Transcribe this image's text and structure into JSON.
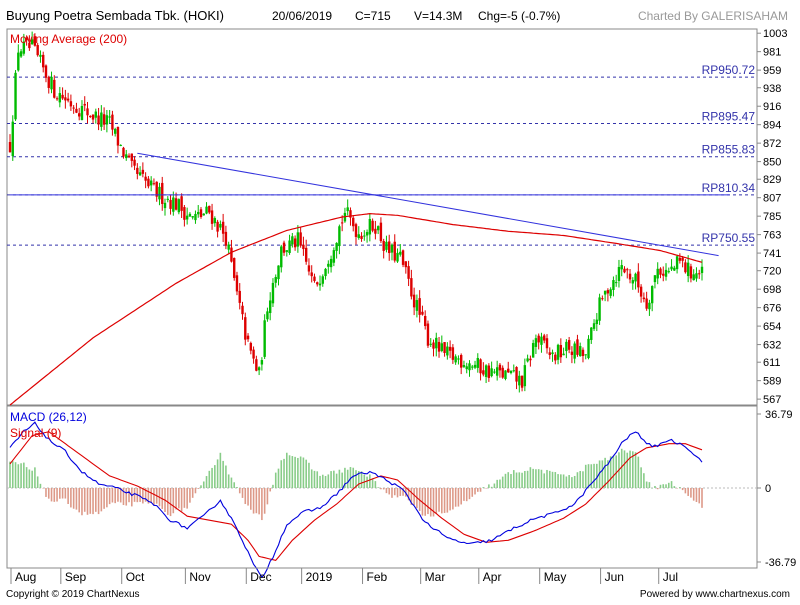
{
  "header": {
    "title": "Buyung Poetra Sembada Tbk. (HOKI)",
    "date": "20/06/2019",
    "close": "C=715",
    "volume": "V=14.3M",
    "change": "Chg=-5 (-0.7%)",
    "credit": "Charted By GALERISAHAM"
  },
  "footer": {
    "copyright": "Copyright © 2019 ChartNexus",
    "powered": "Powered by www.chartnexus.com"
  },
  "colors": {
    "up": "#00bb00",
    "down": "#dd0000",
    "ma": "#dd0000",
    "trend": "#3333dd",
    "macd": "#0000dd",
    "signal": "#dd0000",
    "hist_up": "#88cc88",
    "hist_down": "#dd9988",
    "level": "#3333aa"
  },
  "chart_data": [
    {
      "type": "candlestick",
      "indicator_label": "Moving Average (200)",
      "x_labels": [
        "Aug",
        "Sep",
        "Oct",
        "Nov",
        "Dec",
        "2019",
        "Feb",
        "Mar",
        "Apr",
        "May",
        "Jun",
        "Jul"
      ],
      "y_ticks": [
        1003,
        981,
        959,
        938,
        916,
        894,
        872,
        850,
        829,
        807,
        785,
        763,
        741,
        720,
        698,
        676,
        654,
        632,
        611,
        589,
        567
      ],
      "ylim": [
        560,
        1008
      ],
      "levels": [
        {
          "label": "RP950.72",
          "value": 950.72
        },
        {
          "label": "RP895.47",
          "value": 895.47
        },
        {
          "label": "RP855.83",
          "value": 855.83
        },
        {
          "label": "RP810.34",
          "value": 810.34
        },
        {
          "label": "RP750.55",
          "value": 750.55
        }
      ],
      "price_path": [
        [
          0,
          870
        ],
        [
          3,
          985
        ],
        [
          8,
          985
        ],
        [
          16,
          935
        ],
        [
          22,
          920
        ],
        [
          30,
          905
        ],
        [
          36,
          895
        ],
        [
          44,
          840
        ],
        [
          52,
          815
        ],
        [
          60,
          800
        ],
        [
          66,
          782
        ],
        [
          72,
          790
        ],
        [
          78,
          760
        ],
        [
          82,
          690
        ],
        [
          86,
          630
        ],
        [
          90,
          595
        ],
        [
          93,
          680
        ],
        [
          98,
          745
        ],
        [
          104,
          755
        ],
        [
          110,
          700
        ],
        [
          116,
          745
        ],
        [
          121,
          790
        ],
        [
          126,
          765
        ],
        [
          132,
          775
        ],
        [
          136,
          745
        ],
        [
          141,
          735
        ],
        [
          146,
          685
        ],
        [
          151,
          640
        ],
        [
          157,
          620
        ],
        [
          165,
          612
        ],
        [
          173,
          600
        ],
        [
          180,
          595
        ],
        [
          185,
          588
        ],
        [
          190,
          640
        ],
        [
          196,
          618
        ],
        [
          202,
          628
        ],
        [
          208,
          618
        ],
        [
          212,
          670
        ],
        [
          216,
          700
        ],
        [
          221,
          725
        ],
        [
          226,
          708
        ],
        [
          230,
          682
        ],
        [
          234,
          722
        ],
        [
          238,
          718
        ],
        [
          242,
          730
        ],
        [
          245,
          720
        ],
        [
          250,
          715
        ]
      ],
      "moving_average_200": [
        [
          0,
          560
        ],
        [
          30,
          640
        ],
        [
          60,
          705
        ],
        [
          80,
          742
        ],
        [
          100,
          768
        ],
        [
          120,
          784
        ],
        [
          130,
          788
        ],
        [
          140,
          786
        ],
        [
          160,
          775
        ],
        [
          180,
          767
        ],
        [
          200,
          762
        ],
        [
          220,
          752
        ],
        [
          235,
          744
        ],
        [
          250,
          730
        ]
      ],
      "trend_lines": [
        {
          "from": [
            46,
            860
          ],
          "to": [
            256,
            738
          ]
        },
        {
          "from": [
            0,
            810.34
          ],
          "to": [
            260,
            810.34
          ]
        }
      ]
    },
    {
      "type": "macd",
      "macd_label": "MACD (26,12)",
      "signal_label": "Signal (9)",
      "y_ticks": [
        "36.79",
        "0",
        "-36.79"
      ],
      "ylim": [
        -50,
        50
      ],
      "macd": [
        [
          0,
          20
        ],
        [
          5,
          28
        ],
        [
          9,
          32
        ],
        [
          14,
          24
        ],
        [
          20,
          18
        ],
        [
          26,
          8
        ],
        [
          32,
          2
        ],
        [
          38,
          0
        ],
        [
          46,
          -4
        ],
        [
          52,
          -8
        ],
        [
          58,
          -16
        ],
        [
          64,
          -20
        ],
        [
          70,
          -14
        ],
        [
          76,
          -6
        ],
        [
          82,
          -20
        ],
        [
          88,
          -38
        ],
        [
          91,
          -45
        ],
        [
          95,
          -34
        ],
        [
          100,
          -18
        ],
        [
          106,
          -12
        ],
        [
          112,
          -10
        ],
        [
          118,
          -3
        ],
        [
          124,
          6
        ],
        [
          130,
          8
        ],
        [
          136,
          4
        ],
        [
          142,
          -1
        ],
        [
          150,
          -17
        ],
        [
          158,
          -25
        ],
        [
          166,
          -28
        ],
        [
          174,
          -26
        ],
        [
          182,
          -20
        ],
        [
          190,
          -15
        ],
        [
          196,
          -13
        ],
        [
          204,
          -8
        ],
        [
          210,
          2
        ],
        [
          216,
          12
        ],
        [
          222,
          24
        ],
        [
          226,
          28
        ],
        [
          232,
          20
        ],
        [
          238,
          24
        ],
        [
          244,
          21
        ],
        [
          250,
          13
        ]
      ],
      "signal": [
        [
          0,
          12
        ],
        [
          8,
          26
        ],
        [
          14,
          28
        ],
        [
          20,
          22
        ],
        [
          28,
          14
        ],
        [
          36,
          6
        ],
        [
          46,
          1
        ],
        [
          56,
          -6
        ],
        [
          64,
          -14
        ],
        [
          72,
          -16
        ],
        [
          80,
          -18
        ],
        [
          86,
          -26
        ],
        [
          90,
          -34
        ],
        [
          96,
          -36
        ],
        [
          102,
          -26
        ],
        [
          110,
          -16
        ],
        [
          118,
          -8
        ],
        [
          126,
          2
        ],
        [
          134,
          6
        ],
        [
          140,
          4
        ],
        [
          148,
          -6
        ],
        [
          156,
          -15
        ],
        [
          164,
          -23
        ],
        [
          172,
          -27
        ],
        [
          180,
          -26
        ],
        [
          190,
          -21
        ],
        [
          200,
          -15
        ],
        [
          208,
          -8
        ],
        [
          216,
          3
        ],
        [
          224,
          15
        ],
        [
          230,
          20
        ],
        [
          238,
          22
        ],
        [
          244,
          22
        ],
        [
          250,
          19
        ]
      ]
    }
  ]
}
